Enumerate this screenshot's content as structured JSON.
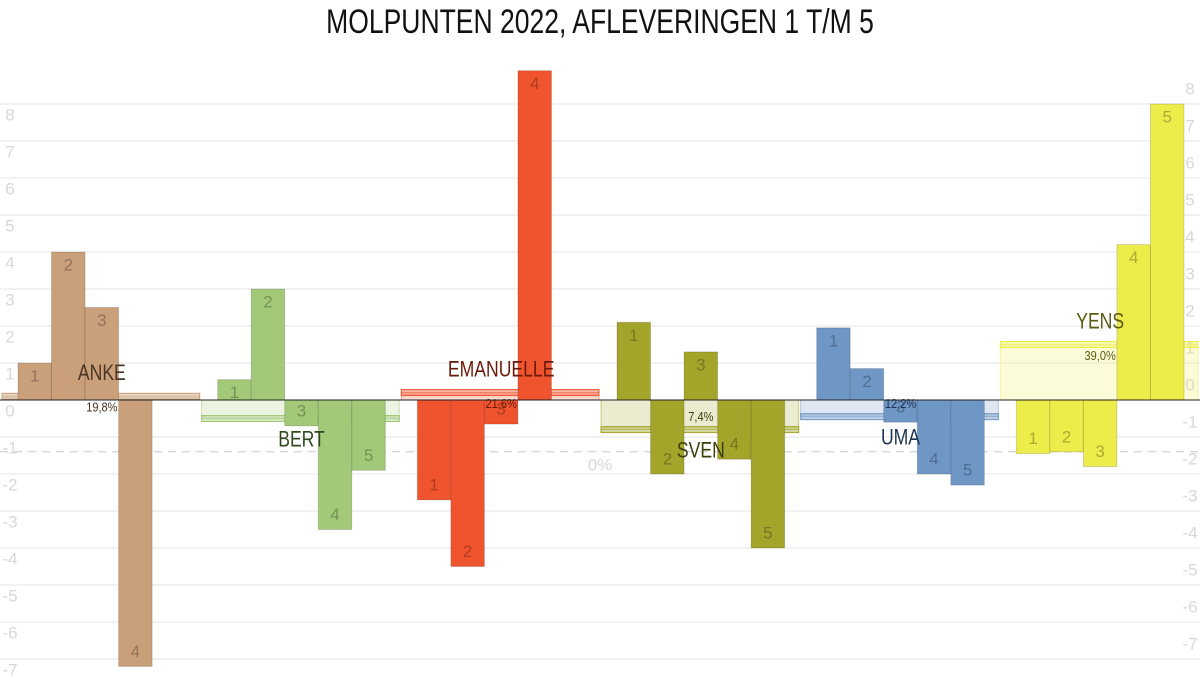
{
  "chart_data": {
    "type": "grouped-bar",
    "title": "MOLPUNTEN 2022, AFLEVERINGEN 1 T/M 5",
    "categories": [
      "1",
      "2",
      "3",
      "4",
      "5"
    ],
    "ylim": [
      -8,
      9
    ],
    "yticks": [
      -7,
      -6,
      -5,
      -4,
      -3,
      -2,
      -1,
      0,
      1,
      2,
      3,
      4,
      5,
      6,
      7,
      8
    ],
    "grid": true,
    "reference_line": {
      "value": -1.4,
      "label": "0%"
    },
    "series": [
      {
        "name": "ANKE",
        "color": "#c9a07a",
        "text_color": "#4a3525",
        "values": [
          1.0,
          4.0,
          2.5,
          -7.2,
          0
        ],
        "band": 0.1,
        "share": 19.8,
        "share_label": "19,8%"
      },
      {
        "name": "BERT",
        "color": "#a2c878",
        "text_color": "#2f4a1e",
        "values": [
          0.55,
          3.0,
          -0.7,
          -3.5,
          -1.9
        ],
        "band": -0.5
      },
      {
        "name": "EMANUELLE",
        "color": "#f0542e",
        "text_color": "#6a1a08",
        "values": [
          -2.7,
          -4.5,
          -0.65,
          8.9,
          0
        ],
        "band": 0.2,
        "share": 21.6,
        "share_label": "21,6%"
      },
      {
        "name": "SVEN",
        "color": "#a3a42a",
        "text_color": "#3d3d0c",
        "values": [
          2.1,
          -2.0,
          1.3,
          -1.6,
          -4.0
        ],
        "band": -0.8,
        "share": 7.4,
        "share_label": "7,4%"
      },
      {
        "name": "UMA",
        "color": "#6f97c6",
        "text_color": "#1e3450",
        "values": [
          1.95,
          0.85,
          -0.6,
          -2.0,
          -2.3
        ],
        "band": -0.45,
        "share": 12.2,
        "share_label": "12,2%"
      },
      {
        "name": "YENS",
        "color": "#ecec4a",
        "text_color": "#5a5a10",
        "values": [
          -1.45,
          -1.4,
          -1.8,
          4.2,
          8.0
        ],
        "band": 1.5,
        "share": 39.0,
        "share_label": "39,0%"
      }
    ]
  }
}
